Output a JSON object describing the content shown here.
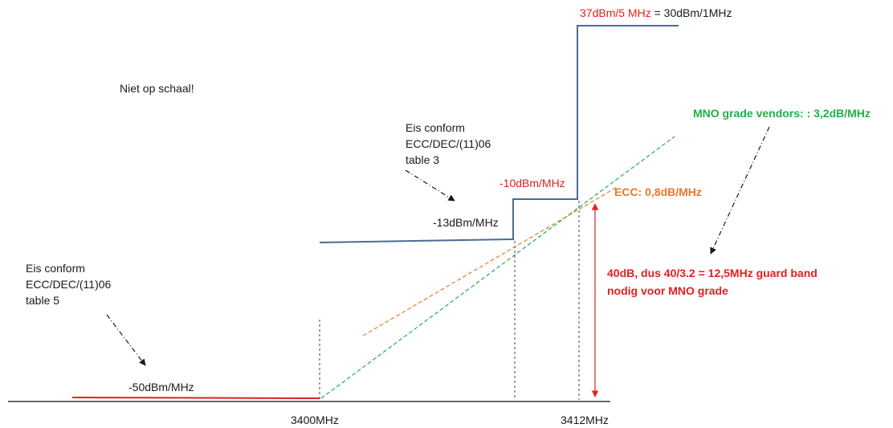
{
  "note": "Niet op schaal!",
  "req_table3": {
    "line1": "Eis conform",
    "line2": "ECC/DEC/(11)06",
    "line3": "table 3"
  },
  "req_table5": {
    "line1": "Eis conform",
    "line2": "ECC/DEC/(11)06",
    "line3": "table 5"
  },
  "levels": {
    "in_band_red": "37dBm/5 MHz",
    "in_band_black": " = 30dBm/1MHz",
    "step_10": "-10dBm/MHz",
    "step_13": "-13dBm/MHz",
    "step_50": "-50dBm/MHz"
  },
  "slopes": {
    "mno": "MNO grade vendors: : 3,2dB/MHz",
    "ecc": "ECC: 0,8dB/MHz"
  },
  "guard_band": {
    "line1": "40dB, dus 40/3.2 = 12,5MHz guard band",
    "line2": "nodig voor MNO grade"
  },
  "axis": {
    "tick_3400": "3400MHz",
    "tick_3412": "3412MHz"
  },
  "colors": {
    "mask_line": "#4a6b96",
    "red": "#e0201f",
    "green": "#1fb04a",
    "orange": "#e8782a",
    "axis": "#333333"
  }
}
